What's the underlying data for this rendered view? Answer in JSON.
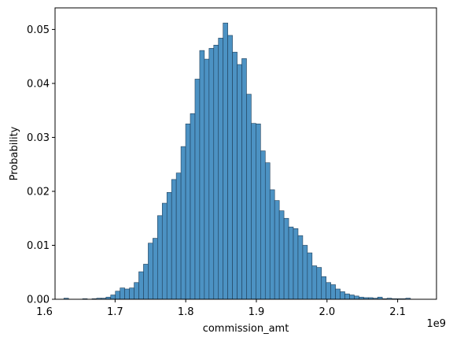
{
  "chart_data": {
    "type": "bar",
    "subtype": "histogram",
    "xlabel": "commission_amt",
    "ylabel": "Probability",
    "x_offset_label": "1e9",
    "xlim": [
      1.615,
      2.155
    ],
    "ylim": [
      0,
      0.054
    ],
    "xticks": [
      1.6,
      1.7,
      1.8,
      1.9,
      2.0,
      2.1
    ],
    "xtick_labels": [
      "1.6",
      "1.7",
      "1.8",
      "1.9",
      "2.0",
      "2.1"
    ],
    "yticks": [
      0.0,
      0.01,
      0.02,
      0.03,
      0.04,
      0.05
    ],
    "ytick_labels": [
      "0.00",
      "0.01",
      "0.02",
      "0.03",
      "0.04",
      "0.05"
    ],
    "grid": false,
    "bar_color": "#4c92c3",
    "edge_color": "#1f3f5a",
    "bin_start": 1.6275,
    "bin_width": 0.00663,
    "values": [
      0.0002,
      0.0,
      0.0,
      0.0,
      0.0001,
      0.0,
      0.0001,
      0.0002,
      0.0002,
      0.0004,
      0.0008,
      0.0015,
      0.0021,
      0.0019,
      0.0021,
      0.0031,
      0.0051,
      0.0065,
      0.0104,
      0.0113,
      0.0155,
      0.0178,
      0.0198,
      0.0222,
      0.0234,
      0.0283,
      0.0325,
      0.0344,
      0.0408,
      0.0461,
      0.0445,
      0.0465,
      0.0471,
      0.0484,
      0.0512,
      0.0489,
      0.0458,
      0.0435,
      0.0446,
      0.038,
      0.0326,
      0.0325,
      0.0275,
      0.0253,
      0.0203,
      0.0183,
      0.0164,
      0.015,
      0.0134,
      0.0131,
      0.0118,
      0.01,
      0.0086,
      0.0062,
      0.0059,
      0.0042,
      0.0031,
      0.0027,
      0.0019,
      0.0014,
      0.001,
      0.0008,
      0.0006,
      0.0004,
      0.0003,
      0.0003,
      0.0002,
      0.0004,
      0.0001,
      0.0002,
      0.0001,
      0.0001,
      0.0001,
      0.0002
    ]
  }
}
